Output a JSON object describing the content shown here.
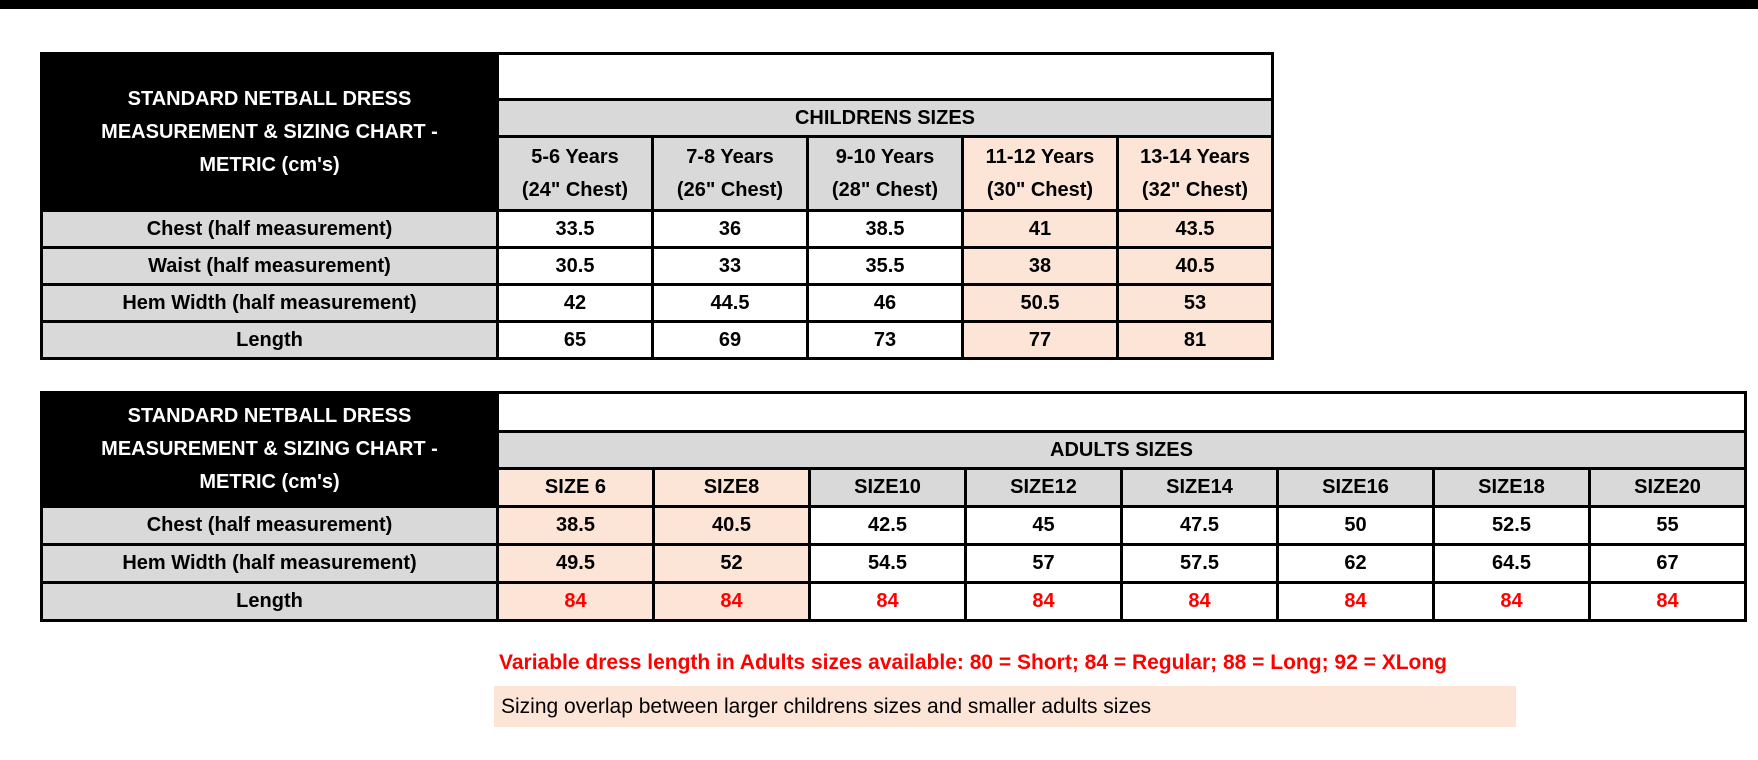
{
  "colors": {
    "header_fill": "#000000",
    "label_fill": "#d9d9d9",
    "overlap_highlight_fill": "#fce4d6",
    "variable_length_text": "#ff0000",
    "border": "#000000"
  },
  "tables": [
    {
      "id": "children",
      "title_lines": [
        "STANDARD NETBALL DRESS",
        "MEASUREMENT & SIZING CHART -",
        "METRIC (cm's)"
      ],
      "group_header": "CHILDRENS SIZES",
      "column_headers": [
        {
          "lines": [
            "5-6 Years",
            "(24\" Chest)"
          ],
          "highlight": false
        },
        {
          "lines": [
            "7-8 Years",
            "(26\" Chest)"
          ],
          "highlight": false
        },
        {
          "lines": [
            "9-10 Years",
            "(28\" Chest)"
          ],
          "highlight": false
        },
        {
          "lines": [
            "11-12 Years",
            "(30\" Chest)"
          ],
          "highlight": true
        },
        {
          "lines": [
            "13-14 Years",
            "(32\" Chest)"
          ],
          "highlight": true
        }
      ],
      "rows": [
        {
          "label": "Chest (half measurement)",
          "values": [
            "33.5",
            "36",
            "38.5",
            "41",
            "43.5"
          ],
          "red": false
        },
        {
          "label": "Waist (half measurement)",
          "values": [
            "30.5",
            "33",
            "35.5",
            "38",
            "40.5"
          ],
          "red": false
        },
        {
          "label": "Hem Width (half measurement)",
          "values": [
            "42",
            "44.5",
            "46",
            "50.5",
            "53"
          ],
          "red": false
        },
        {
          "label": "Length",
          "values": [
            "65",
            "69",
            "73",
            "77",
            "81"
          ],
          "red": false
        }
      ],
      "highlight_cols": [
        3,
        4
      ]
    },
    {
      "id": "adults",
      "title_lines": [
        "STANDARD NETBALL DRESS",
        "MEASUREMENT & SIZING CHART -",
        "METRIC (cm's)"
      ],
      "group_header": "ADULTS SIZES",
      "column_headers": [
        {
          "lines": [
            "SIZE 6"
          ],
          "highlight": true
        },
        {
          "lines": [
            "SIZE8"
          ],
          "highlight": true
        },
        {
          "lines": [
            "SIZE10"
          ],
          "highlight": false
        },
        {
          "lines": [
            "SIZE12"
          ],
          "highlight": false
        },
        {
          "lines": [
            "SIZE14"
          ],
          "highlight": false
        },
        {
          "lines": [
            "SIZE16"
          ],
          "highlight": false
        },
        {
          "lines": [
            "SIZE18"
          ],
          "highlight": false
        },
        {
          "lines": [
            "SIZE20"
          ],
          "highlight": false
        }
      ],
      "rows": [
        {
          "label": "Chest (half measurement)",
          "values": [
            "38.5",
            "40.5",
            "42.5",
            "45",
            "47.5",
            "50",
            "52.5",
            "55"
          ],
          "red": false
        },
        {
          "label": "Hem Width (half measurement)",
          "values": [
            "49.5",
            "52",
            "54.5",
            "57",
            "57.5",
            "62",
            "64.5",
            "67"
          ],
          "red": false
        },
        {
          "label": "Length",
          "values": [
            "84",
            "84",
            "84",
            "84",
            "84",
            "84",
            "84",
            "84"
          ],
          "red": true
        }
      ],
      "highlight_cols": [
        0,
        1
      ]
    }
  ],
  "notes": {
    "variable_length": "Variable dress length in Adults sizes available: 80 = Short; 84 = Regular; 88 = Long; 92 = XLong",
    "sizing_overlap": "Sizing overlap between larger childrens sizes and smaller adults sizes"
  }
}
